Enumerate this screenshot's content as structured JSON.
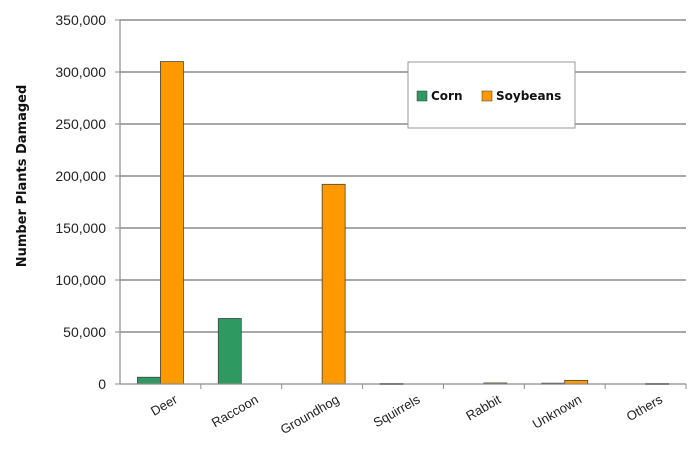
{
  "chart_data": {
    "type": "bar",
    "title": "",
    "xlabel": "",
    "ylabel": "Number Plants Damaged",
    "ylim": [
      0,
      350000
    ],
    "yticks": [
      0,
      50000,
      100000,
      150000,
      200000,
      250000,
      300000,
      350000
    ],
    "ytick_labels": [
      "0",
      "50,000",
      "100,000",
      "150,000",
      "200,000",
      "250,000",
      "300,000",
      "350,000"
    ],
    "categories": [
      "Deer",
      "Raccoon",
      "Groundhog",
      "Squirrels",
      "Rabbit",
      "Unknown",
      "Others"
    ],
    "series": [
      {
        "name": "Corn",
        "color": "#2e9a62",
        "values": [
          6500,
          63000,
          0,
          500,
          0,
          800,
          0
        ]
      },
      {
        "name": "Soybeans",
        "color": "#ff9900",
        "values": [
          310000,
          0,
          192000,
          0,
          1000,
          3500,
          500
        ]
      }
    ],
    "grid": true,
    "legend_position": "top-right"
  }
}
